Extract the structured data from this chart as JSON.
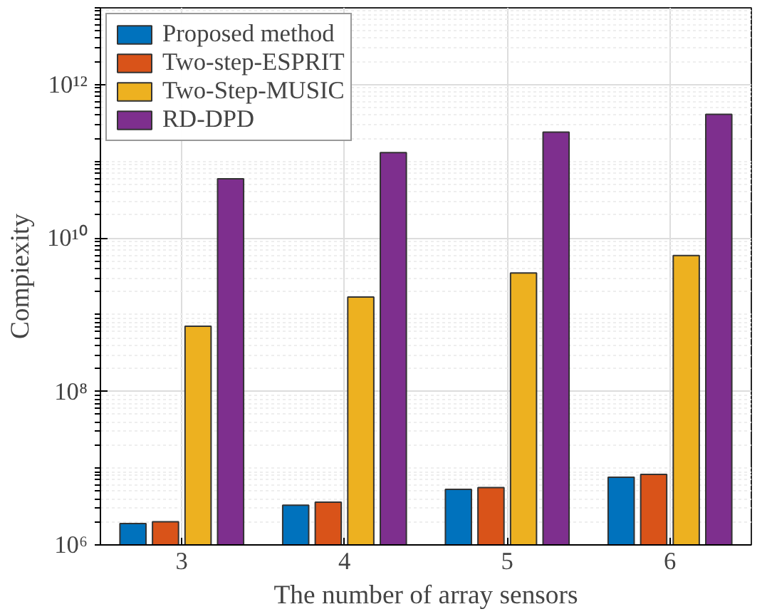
{
  "chart_data": {
    "type": "bar",
    "xlabel": "The number of array sensors",
    "ylabel": "Compiexity",
    "categories": [
      "3",
      "4",
      "5",
      "6"
    ],
    "series": [
      {
        "name": "Proposed method",
        "color": "#0072bd",
        "values": [
          1900000.0,
          3300000.0,
          5300000.0,
          7600000.0
        ]
      },
      {
        "name": "Two-step-ESPRIT",
        "color": "#d95319",
        "values": [
          2000000.0,
          3600000.0,
          5600000.0,
          8300000.0
        ]
      },
      {
        "name": "Two-Step-MUSIC",
        "color": "#edb120",
        "values": [
          710000000.0,
          1700000000.0,
          3500000000.0,
          5900000000.0
        ]
      },
      {
        "name": "RD-DPD",
        "color": "#7e2f8e",
        "values": [
          59000000000.0,
          130000000000.0,
          240000000000.0,
          410000000000.0
        ]
      }
    ],
    "log": "y",
    "ylim": [
      1000000.0,
      10000000000000.0
    ],
    "yticks": [
      {
        "value": 1000000.0,
        "label": "10⁶"
      },
      {
        "value": 100000000.0,
        "label": "10⁸"
      },
      {
        "value": 10000000000.0,
        "label": "10¹⁰"
      },
      {
        "value": 1000000000000.0,
        "label": "10¹²"
      }
    ],
    "grid": true,
    "legend": "top left"
  }
}
